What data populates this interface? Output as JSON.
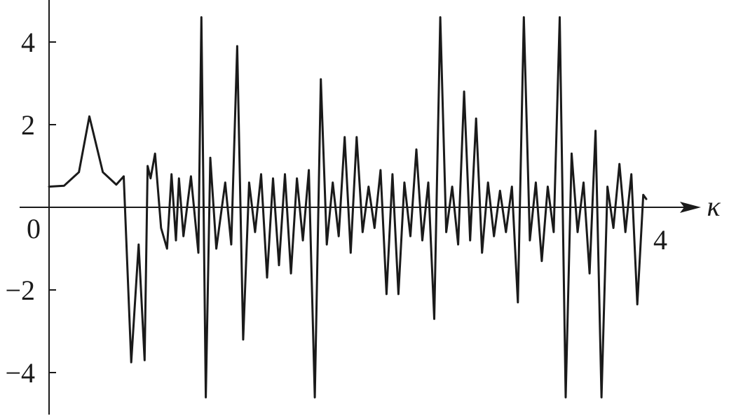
{
  "chart_data": {
    "type": "line",
    "title": "",
    "xlabel": "κ",
    "ylabel": "",
    "xlim": [
      0,
      4
    ],
    "ylim": [
      -4.6,
      4.6
    ],
    "x_ticks": [
      {
        "value": 4,
        "label": "4"
      }
    ],
    "origin_label": "0",
    "y_ticks": [
      {
        "value": 4,
        "label": "4"
      },
      {
        "value": 2,
        "label": "2"
      },
      {
        "value": -2,
        "label": "−2"
      },
      {
        "value": -4,
        "label": "−4"
      }
    ],
    "grid": false,
    "legend": "none",
    "line_color": "#1a1a1a",
    "series": [
      {
        "x": [
          0.0,
          0.1,
          0.2,
          0.27,
          0.36,
          0.45,
          0.5,
          0.55,
          0.6,
          0.64,
          0.66,
          0.68,
          0.71,
          0.75,
          0.79,
          0.82,
          0.85,
          0.87,
          0.9,
          0.95,
          1.0,
          1.02,
          1.05,
          1.08,
          1.12,
          1.18,
          1.22,
          1.26,
          1.3,
          1.34,
          1.38,
          1.42,
          1.46,
          1.5,
          1.54,
          1.58,
          1.62,
          1.66,
          1.7,
          1.74,
          1.78,
          1.82,
          1.86,
          1.9,
          1.94,
          1.98,
          2.02,
          2.06,
          2.1,
          2.14,
          2.18,
          2.22,
          2.26,
          2.3,
          2.34,
          2.38,
          2.42,
          2.46,
          2.5,
          2.54,
          2.58,
          2.62,
          2.66,
          2.7,
          2.74,
          2.78,
          2.82,
          2.86,
          2.9,
          2.94,
          2.98,
          3.02,
          3.06,
          3.1,
          3.14,
          3.18,
          3.22,
          3.26,
          3.3,
          3.34,
          3.38,
          3.42,
          3.46,
          3.5,
          3.54,
          3.58,
          3.62,
          3.66,
          3.7,
          3.74,
          3.78,
          3.82,
          3.86,
          3.9,
          3.94,
          3.98,
          4.0
        ],
        "y": [
          0.5,
          0.52,
          0.85,
          2.2,
          0.85,
          0.55,
          0.75,
          -3.75,
          -0.9,
          -3.7,
          1.0,
          0.7,
          1.3,
          -0.5,
          -1.0,
          0.8,
          -0.8,
          0.7,
          -0.7,
          0.75,
          -1.1,
          4.6,
          -4.6,
          1.2,
          -1.0,
          0.6,
          -0.9,
          3.9,
          -3.2,
          0.6,
          -0.6,
          0.8,
          -1.7,
          0.7,
          -1.4,
          0.8,
          -1.6,
          0.7,
          -0.8,
          0.9,
          -4.6,
          3.1,
          -0.9,
          0.6,
          -0.7,
          1.7,
          -1.1,
          1.7,
          -0.6,
          0.5,
          -0.5,
          0.9,
          -2.1,
          0.8,
          -2.1,
          0.6,
          -0.7,
          1.4,
          -0.8,
          0.6,
          -2.7,
          4.6,
          -0.6,
          0.5,
          -0.9,
          2.8,
          -0.8,
          2.15,
          -1.1,
          0.6,
          -0.7,
          0.4,
          -0.6,
          0.5,
          -2.3,
          4.6,
          -0.8,
          0.6,
          -1.3,
          0.5,
          -0.6,
          4.6,
          -4.6,
          1.3,
          -0.6,
          0.6,
          -1.6,
          1.85,
          -4.6,
          0.5,
          -0.5,
          1.05,
          -0.6,
          0.8,
          -2.35,
          0.3,
          0.2
        ]
      }
    ]
  }
}
